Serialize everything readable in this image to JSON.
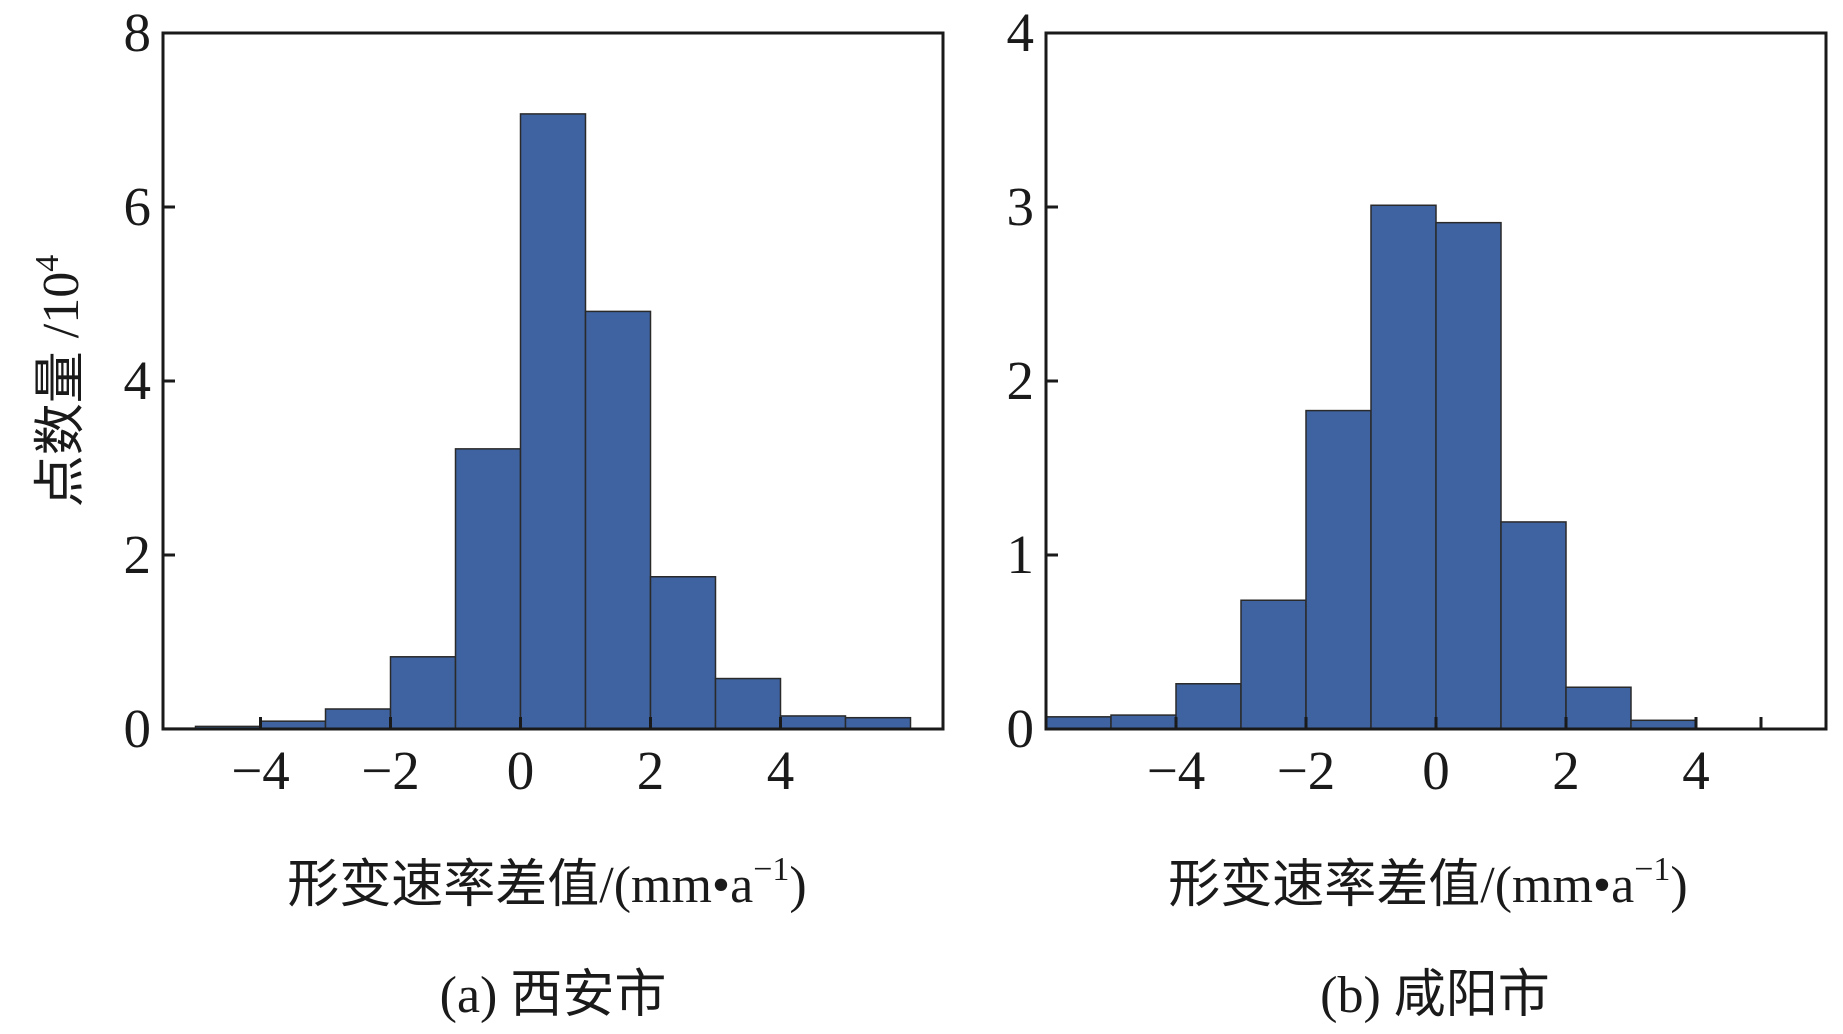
{
  "colors": {
    "bar": "#3e63a0",
    "axis": "#1a1a1a"
  },
  "chart_data": [
    {
      "type": "bar",
      "caption": "(a) 西安市",
      "xlabel": "形变速率差值/(mm•a",
      "xlabel_sup": "−1",
      "xlabel_close": ")",
      "ylabel": "点数量 /10",
      "ylabel_sup": "4",
      "xlim": [
        -5.5,
        6.5
      ],
      "ylim": [
        0,
        8
      ],
      "xticks": [
        -4,
        -2,
        0,
        2,
        4
      ],
      "xtick_labels": [
        "−4",
        "−2",
        "0",
        "2",
        "4"
      ],
      "yticks": [
        0,
        2,
        4,
        6,
        8
      ],
      "ytick_labels": [
        "0",
        "2",
        "4",
        "6",
        "8"
      ],
      "bin_width": 1,
      "bin_starts": [
        -6,
        -5,
        -4,
        -3,
        -2,
        -1,
        0,
        1,
        2,
        3,
        4,
        5
      ],
      "values": [
        0.01,
        0.03,
        0.09,
        0.23,
        0.83,
        3.22,
        7.07,
        4.8,
        1.75,
        0.58,
        0.15,
        0.13
      ]
    },
    {
      "type": "bar",
      "caption": "(b) 咸阳市",
      "xlabel": "形变速率差值/(mm•a",
      "xlabel_sup": "−1",
      "xlabel_close": ")",
      "xlim": [
        -6,
        6
      ],
      "ylim": [
        0,
        4
      ],
      "xticks": [
        -4,
        -2,
        0,
        2,
        4,
        5
      ],
      "xtick_labels": [
        "−4",
        "−2",
        "0",
        "2",
        "4",
        ""
      ],
      "yticks": [
        0,
        1,
        2,
        3,
        4
      ],
      "ytick_labels": [
        "0",
        "1",
        "2",
        "3",
        "4"
      ],
      "bin_width": 1,
      "bin_starts": [
        -6,
        -5,
        -4,
        -3,
        -2,
        -1,
        0,
        1,
        2,
        3
      ],
      "values": [
        0.07,
        0.08,
        0.26,
        0.74,
        1.83,
        3.01,
        2.91,
        1.19,
        0.24,
        0.05
      ]
    }
  ]
}
